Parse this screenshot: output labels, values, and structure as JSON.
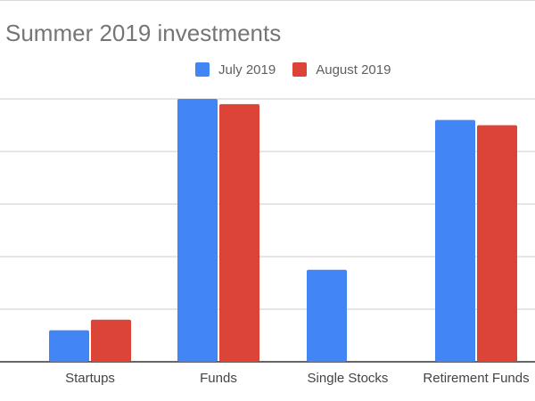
{
  "chart_data": {
    "type": "bar",
    "title": "Summer 2019 investments",
    "categories": [
      "Startups",
      "Funds",
      "Single Stocks",
      "Retirement Funds"
    ],
    "series": [
      {
        "name": "July 2019",
        "color": "#4285f4",
        "values": [
          6,
          50,
          17.5,
          46
        ]
      },
      {
        "name": "August 2019",
        "color": "#db4437",
        "values": [
          8,
          49,
          0,
          45
        ]
      }
    ],
    "ylim": [
      0,
      50
    ],
    "y_gridlines": [
      0,
      10,
      20,
      30,
      40,
      50
    ],
    "grid": true,
    "legend_position": "top",
    "xlabel": "",
    "ylabel": ""
  }
}
